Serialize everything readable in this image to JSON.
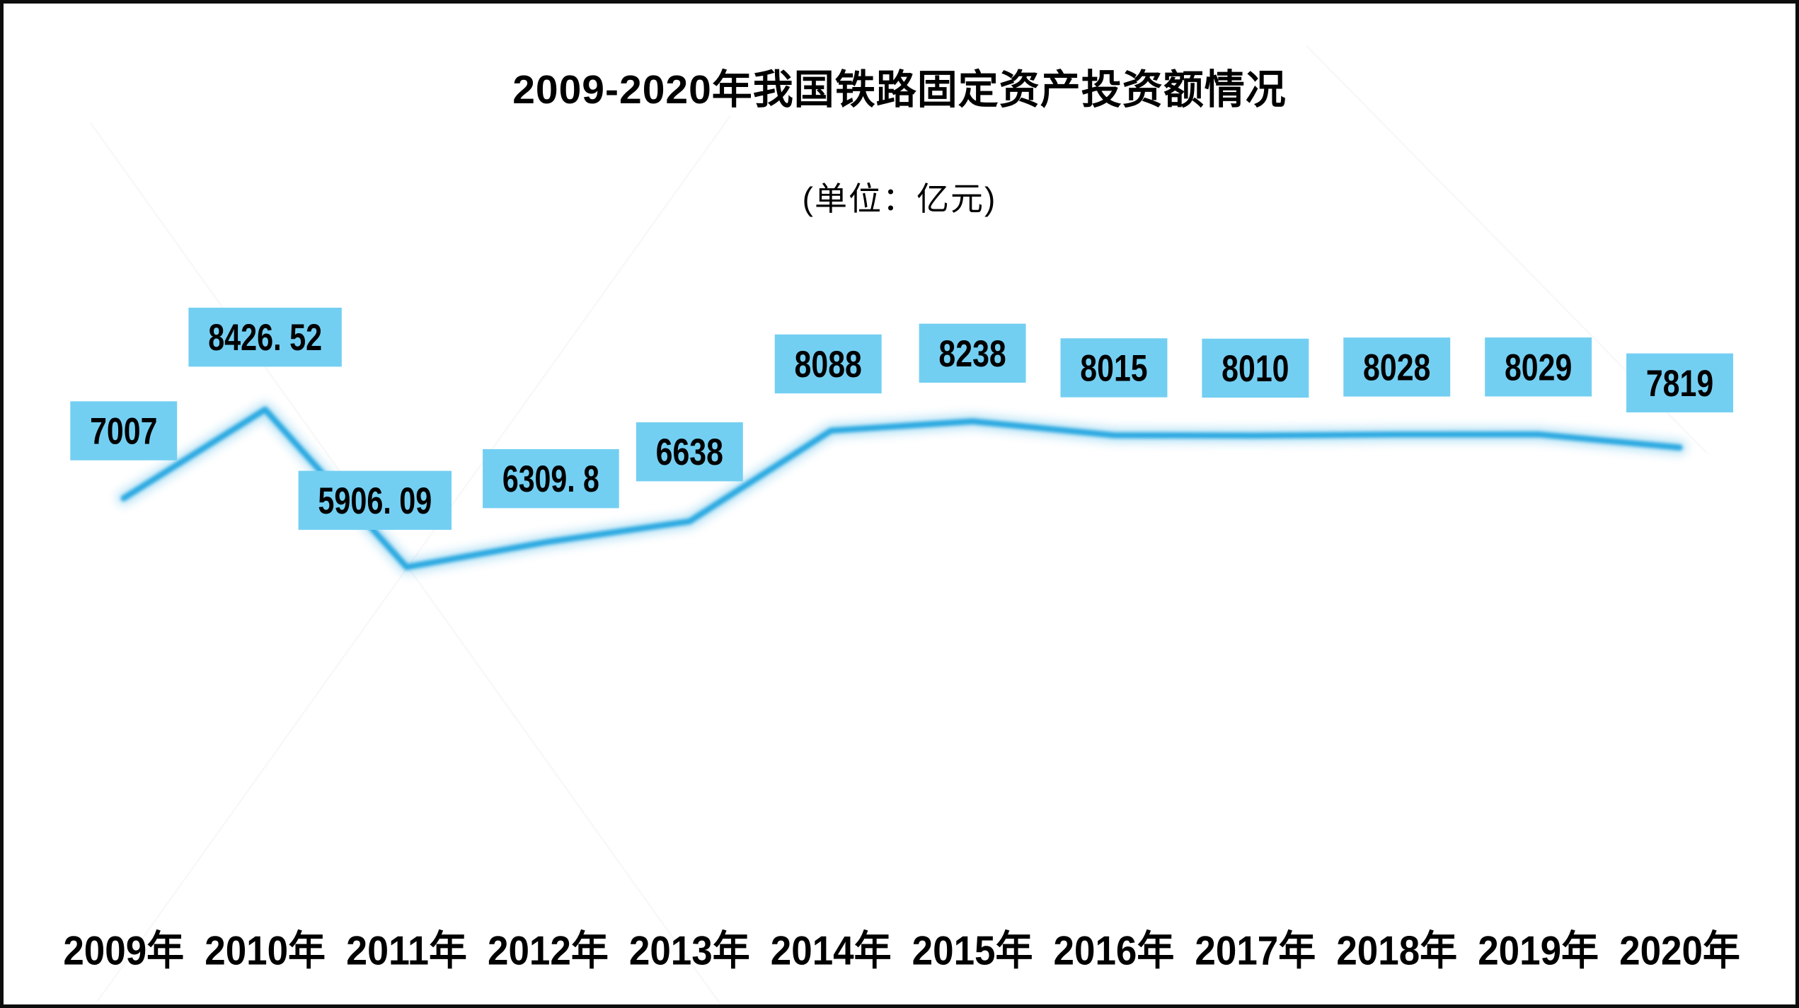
{
  "chart_data": {
    "type": "line",
    "title": "2009-2020年我国铁路固定资产投资额情况",
    "subtitle": "(单位：亿元)",
    "unit": "亿元",
    "categories": [
      "2009年",
      "2010年",
      "2011年",
      "2012年",
      "2013年",
      "2014年",
      "2015年",
      "2016年",
      "2017年",
      "2018年",
      "2019年",
      "2020年"
    ],
    "values": [
      7007,
      8426.52,
      5906.09,
      6309.8,
      6638,
      8088,
      8238,
      8015,
      8010,
      8028,
      8029,
      7819
    ],
    "value_labels": [
      "7007",
      "8426. 52",
      "5906. 09",
      "6309. 8",
      "6638",
      "8088",
      "8238",
      "8015",
      "8010",
      "8028",
      "8029",
      "7819"
    ],
    "series": [
      {
        "name": "铁路固定资产投资额",
        "values": [
          7007,
          8426.52,
          5906.09,
          6309.8,
          6638,
          8088,
          8238,
          8015,
          8010,
          8028,
          8029,
          7819
        ]
      }
    ],
    "ylim": [
      5500,
      8800
    ],
    "grid": "off",
    "legend": "none",
    "y_axis_visible": false,
    "colors": {
      "line": "#2BA9E1",
      "stem": "#29A6E0",
      "label_box": "#73CFF2",
      "label_text": "#000000",
      "axis_text": "#000000",
      "background": "#ffffff",
      "frame_border": "#0d0d0d"
    }
  }
}
